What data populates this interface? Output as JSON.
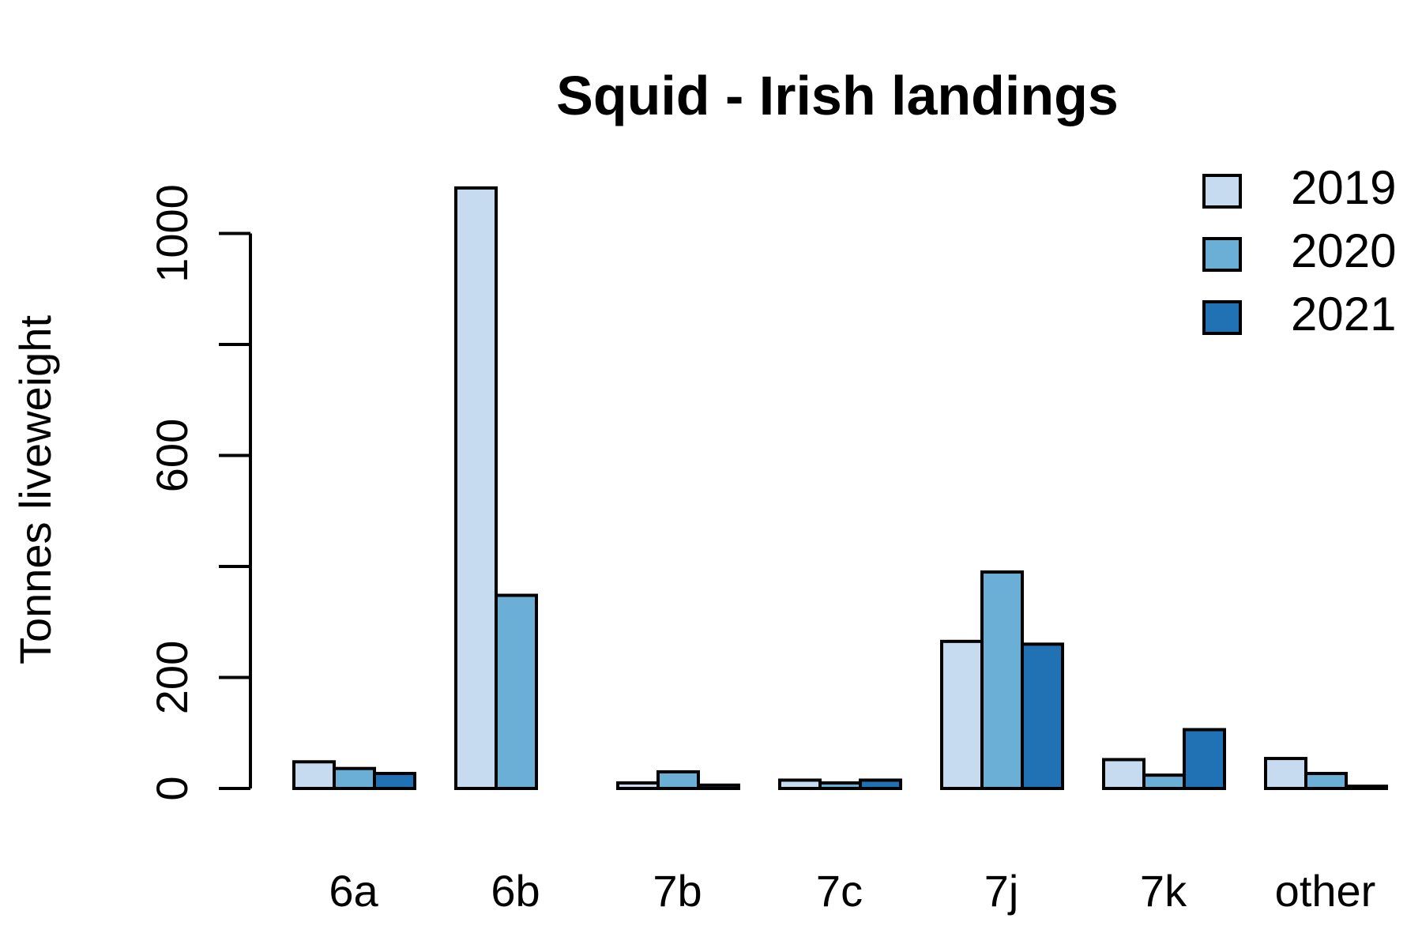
{
  "chart_data": {
    "type": "bar",
    "title": "Squid - Irish landings",
    "xlabel": "",
    "ylabel": "Tonnes liveweight",
    "categories": [
      "6a",
      "6b",
      "7b",
      "7c",
      "7j",
      "7k",
      "other"
    ],
    "series": [
      {
        "name": "2019",
        "values": [
          48,
          1082,
          10,
          15,
          265,
          52,
          54
        ]
      },
      {
        "name": "2020",
        "values": [
          36,
          348,
          30,
          10,
          390,
          24,
          27
        ]
      },
      {
        "name": "2021",
        "values": [
          27,
          0,
          6,
          15,
          260,
          106,
          4
        ]
      }
    ],
    "colors": [
      "#c6dbef",
      "#6baed6",
      "#2171b5"
    ],
    "ylim": [
      0,
      1100
    ],
    "yticks": [
      0,
      200,
      400,
      600,
      800,
      1000
    ],
    "yticklabels": [
      "0",
      "200",
      "",
      "600",
      "",
      "1000"
    ],
    "legend_position": "top-right",
    "grid": false
  }
}
